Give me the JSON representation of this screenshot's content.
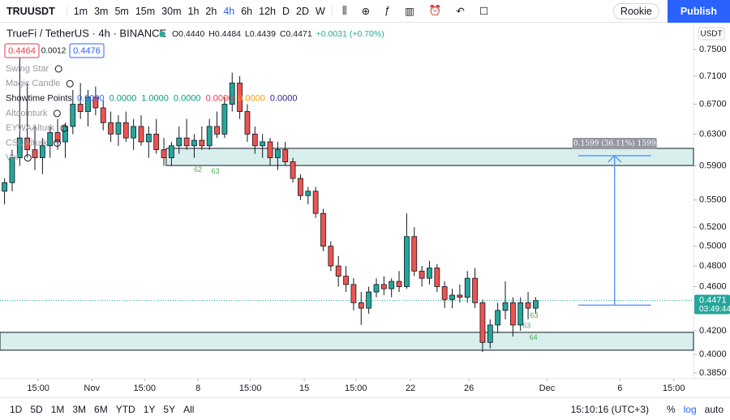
{
  "toolbar": {
    "symbol": "TRUUSDT",
    "timeframes": [
      "1m",
      "3m",
      "5m",
      "15m",
      "30m",
      "1h",
      "2h",
      "4h",
      "6h",
      "12h",
      "D",
      "2D",
      "W"
    ],
    "active_timeframe": "4h",
    "profile": "Rookie",
    "publish": "Publish"
  },
  "header": {
    "title": "TrueFi / TetherUS · 4h · BINANCE",
    "ohlc": [
      "O0.4440",
      "H0.4484",
      "L0.4439",
      "C0.4471",
      "+0.0031 (+0.70%)"
    ],
    "bid": "0.4464",
    "spread": "0.0012",
    "ask": "0.4476"
  },
  "indicators": {
    "names": [
      "Swing Star",
      "Magic Candle",
      "Showtime Points",
      "Altcointurk",
      "EYWAAlturk",
      "CSL Alturk",
      "Vol"
    ],
    "showtime_values": [
      "0.0000",
      "0.0000",
      "1.0000",
      "0.0000",
      "0.0000",
      "0.0000",
      "0.0000"
    ],
    "showtime_colors": [
      "#2962ff",
      "#089981",
      "#089981",
      "#089981",
      "#f23645",
      "#ff9800",
      "#311b92"
    ]
  },
  "chart_data": {
    "type": "candlestick",
    "log": true,
    "grid": false,
    "currency": "USDT",
    "open": [
      0.56,
      0.57,
      0.6,
      0.625,
      0.61,
      0.6,
      0.615,
      0.632,
      0.62,
      0.64,
      0.67,
      0.66,
      0.68,
      0.665,
      0.645,
      0.63,
      0.645,
      0.625,
      0.64,
      0.62,
      0.63,
      0.61,
      0.6,
      0.615,
      0.625,
      0.615,
      0.622,
      0.615,
      0.64,
      0.63,
      0.67,
      0.7,
      0.66,
      0.63,
      0.615,
      0.62,
      0.6,
      0.61,
      0.595,
      0.575,
      0.555,
      0.56,
      0.535,
      0.5,
      0.48,
      0.47,
      0.462,
      0.445,
      0.44,
      0.455,
      0.462,
      0.458,
      0.465,
      0.46,
      0.51,
      0.475,
      0.468,
      0.478,
      0.46,
      0.448,
      0.452,
      0.45,
      0.468,
      0.445,
      0.41,
      0.425,
      0.438,
      0.445,
      0.425,
      0.445,
      0.44
    ],
    "high": [
      0.575,
      0.61,
      0.74,
      0.7,
      0.64,
      0.625,
      0.64,
      0.65,
      0.645,
      0.69,
      0.7,
      0.69,
      0.695,
      0.675,
      0.66,
      0.655,
      0.66,
      0.65,
      0.655,
      0.64,
      0.65,
      0.625,
      0.62,
      0.64,
      0.65,
      0.63,
      0.64,
      0.65,
      0.66,
      0.68,
      0.715,
      0.71,
      0.67,
      0.64,
      0.63,
      0.625,
      0.62,
      0.62,
      0.6,
      0.58,
      0.565,
      0.565,
      0.54,
      0.505,
      0.49,
      0.48,
      0.468,
      0.455,
      0.46,
      0.468,
      0.47,
      0.468,
      0.475,
      0.535,
      0.52,
      0.48,
      0.485,
      0.482,
      0.465,
      0.458,
      0.462,
      0.475,
      0.478,
      0.448,
      0.43,
      0.445,
      0.465,
      0.45,
      0.45,
      0.455,
      0.45
    ],
    "low": [
      0.545,
      0.56,
      0.59,
      0.6,
      0.585,
      0.58,
      0.6,
      0.61,
      0.6,
      0.63,
      0.65,
      0.64,
      0.655,
      0.635,
      0.62,
      0.615,
      0.62,
      0.61,
      0.615,
      0.6,
      0.605,
      0.59,
      0.59,
      0.605,
      0.61,
      0.6,
      0.61,
      0.61,
      0.625,
      0.625,
      0.66,
      0.65,
      0.62,
      0.605,
      0.6,
      0.59,
      0.585,
      0.59,
      0.57,
      0.55,
      0.545,
      0.53,
      0.495,
      0.475,
      0.46,
      0.455,
      0.438,
      0.425,
      0.435,
      0.45,
      0.452,
      0.45,
      0.455,
      0.458,
      0.47,
      0.46,
      0.462,
      0.455,
      0.44,
      0.44,
      0.445,
      0.445,
      0.44,
      0.402,
      0.405,
      0.418,
      0.43,
      0.415,
      0.42,
      0.43,
      0.435
    ],
    "close": [
      0.57,
      0.6,
      0.625,
      0.61,
      0.6,
      0.615,
      0.632,
      0.62,
      0.64,
      0.67,
      0.66,
      0.68,
      0.665,
      0.645,
      0.63,
      0.645,
      0.625,
      0.64,
      0.62,
      0.63,
      0.61,
      0.6,
      0.615,
      0.625,
      0.615,
      0.622,
      0.615,
      0.64,
      0.63,
      0.67,
      0.7,
      0.66,
      0.63,
      0.615,
      0.62,
      0.6,
      0.61,
      0.595,
      0.575,
      0.555,
      0.56,
      0.535,
      0.5,
      0.48,
      0.47,
      0.462,
      0.445,
      0.44,
      0.455,
      0.462,
      0.458,
      0.465,
      0.46,
      0.51,
      0.475,
      0.468,
      0.478,
      0.46,
      0.448,
      0.452,
      0.45,
      0.468,
      0.445,
      0.41,
      0.425,
      0.438,
      0.445,
      0.425,
      0.445,
      0.44,
      0.4471
    ],
    "up_color": "#26a69a",
    "down_color": "#ef5350",
    "xlim": [
      -0.1,
      91.3
    ],
    "xticks": [
      {
        "value": 4.94,
        "label": "15:00"
      },
      {
        "value": 12,
        "label": "Nov"
      },
      {
        "value": 18.96,
        "label": "15:00"
      },
      {
        "value": 26,
        "label": "8"
      },
      {
        "value": 32.9,
        "label": "15:00"
      },
      {
        "value": 40,
        "label": "15"
      },
      {
        "value": 46.8,
        "label": "15:00"
      },
      {
        "value": 54,
        "label": "22"
      },
      {
        "value": 61.7,
        "label": "26"
      },
      {
        "value": 72,
        "label": "Dec"
      },
      {
        "value": 81.6,
        "label": "6"
      },
      {
        "value": 88.7,
        "label": "15:00"
      }
    ],
    "ylim": [
      0.3805,
      0.79
    ],
    "yticks": [
      {
        "value": 0.75,
        "label": "0.7500"
      },
      {
        "value": 0.71,
        "label": "0.7100"
      },
      {
        "value": 0.67,
        "label": "0.6700"
      },
      {
        "value": 0.63,
        "label": "0.6300"
      },
      {
        "value": 0.59,
        "label": "0.5900"
      },
      {
        "value": 0.55,
        "label": "0.5500"
      },
      {
        "value": 0.52,
        "label": "0.5200"
      },
      {
        "value": 0.5,
        "label": "0.5000"
      },
      {
        "value": 0.48,
        "label": "0.4800"
      },
      {
        "value": 0.46,
        "label": "0.4600"
      },
      {
        "value": 0.42,
        "label": "0.4200"
      },
      {
        "value": 0.4,
        "label": "0.4000"
      },
      {
        "value": 0.385,
        "label": "0.3850"
      }
    ],
    "zones": [
      {
        "x": [
          21.8,
          91.3
        ],
        "y": [
          0.5905,
          0.6117
        ]
      },
      {
        "x": [
          -0.1,
          91.3
        ],
        "y": [
          0.4035,
          0.4186
        ]
      }
    ],
    "measure": {
      "x": [
        76.1,
        85.7
      ],
      "from": 0.4427,
      "to": 0.6026,
      "label": "0.1599 (36.11%) 1599"
    },
    "last_price": {
      "value": 0.4471,
      "label": "0.4471",
      "countdown": "03:49:44"
    },
    "annotations": [
      {
        "x": 26,
        "y": 0.585,
        "text": "62"
      },
      {
        "x": 28.3,
        "y": 0.583,
        "text": "63"
      },
      {
        "x": 69.3,
        "y": 0.424,
        "text": "63"
      },
      {
        "x": 70.3,
        "y": 0.433,
        "text": "63"
      },
      {
        "x": 70.2,
        "y": 0.414,
        "text": "64"
      }
    ]
  },
  "bottombar": {
    "ranges": [
      "1D",
      "5D",
      "1M",
      "3M",
      "6M",
      "YTD",
      "1Y",
      "5Y",
      "All"
    ],
    "clock": "15:10:16 (UTC+3)",
    "options": [
      "%",
      "log",
      "auto"
    ]
  }
}
